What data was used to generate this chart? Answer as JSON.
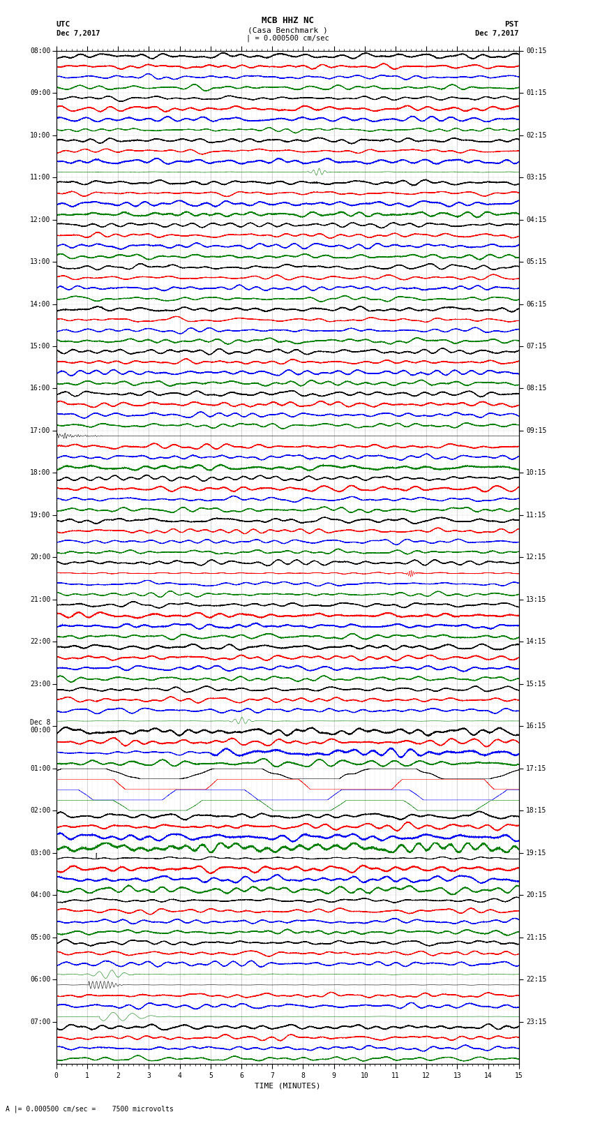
{
  "title_line1": "MCB HHZ NC",
  "title_line2": "(Casa Benchmark )",
  "title_scale": "| = 0.000500 cm/sec",
  "left_label": "UTC",
  "left_date": "Dec 7,2017",
  "right_label": "PST",
  "right_date": "Dec 7,2017",
  "xlabel": "TIME (MINUTES)",
  "bottom_note": "A |= 0.000500 cm/sec =    7500 microvolts",
  "xmin": 0,
  "xmax": 15,
  "trace_colors": [
    "black",
    "red",
    "blue",
    "green"
  ],
  "background_color": "white",
  "left_times_utc": [
    "08:00",
    "09:00",
    "10:00",
    "11:00",
    "12:00",
    "13:00",
    "14:00",
    "15:00",
    "16:00",
    "17:00",
    "18:00",
    "19:00",
    "20:00",
    "21:00",
    "22:00",
    "23:00",
    "Dec 8\n00:00",
    "01:00",
    "02:00",
    "03:00",
    "04:00",
    "05:00",
    "06:00",
    "07:00"
  ],
  "right_times_pst": [
    "00:15",
    "01:15",
    "02:15",
    "03:15",
    "04:15",
    "05:15",
    "06:15",
    "07:15",
    "08:15",
    "09:15",
    "10:15",
    "11:15",
    "12:15",
    "13:15",
    "14:15",
    "15:15",
    "16:15",
    "17:15",
    "18:15",
    "19:15",
    "20:15",
    "21:15",
    "22:15",
    "23:15"
  ],
  "n_rows": 24,
  "traces_per_row": 4,
  "figsize": [
    8.5,
    16.13
  ],
  "dpi": 100
}
